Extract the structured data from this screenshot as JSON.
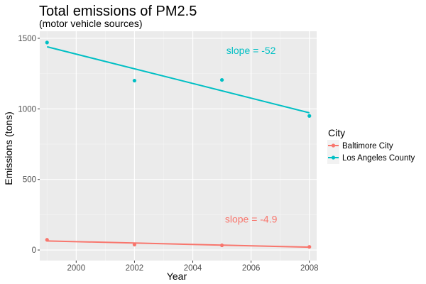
{
  "chart_data": {
    "type": "scatter",
    "title": "Total emissions of PM2.5",
    "subtitle": "(motor vehicle sources)",
    "xlabel": "Year",
    "ylabel": "Emissions (tons)",
    "xlim": [
      1998.75,
      2008.25
    ],
    "ylim": [
      -75,
      1550
    ],
    "xticks": [
      2000,
      2002,
      2004,
      2006,
      2008
    ],
    "yticks": [
      0,
      500,
      1000,
      1500
    ],
    "grid": true,
    "legend": {
      "title": "City",
      "position": "right"
    },
    "series": [
      {
        "name": "Baltimore City",
        "color": "#F8766D",
        "x": [
          1999,
          2002,
          2005,
          2008
        ],
        "y": [
          72,
          38,
          33,
          22
        ],
        "trend": {
          "x": [
            1999,
            2008
          ],
          "y": [
            64,
            20
          ]
        },
        "annotation": {
          "text": "slope = -4.9",
          "x": 2006,
          "y": 195
        }
      },
      {
        "name": "Los Angeles County",
        "color": "#00BFC4",
        "x": [
          1999,
          2002,
          2005,
          2008
        ],
        "y": [
          1470,
          1200,
          1205,
          950
        ],
        "trend": {
          "x": [
            1999,
            2008
          ],
          "y": [
            1440,
            972
          ]
        },
        "annotation": {
          "text": "slope = -52",
          "x": 2006,
          "y": 1390
        }
      }
    ]
  }
}
